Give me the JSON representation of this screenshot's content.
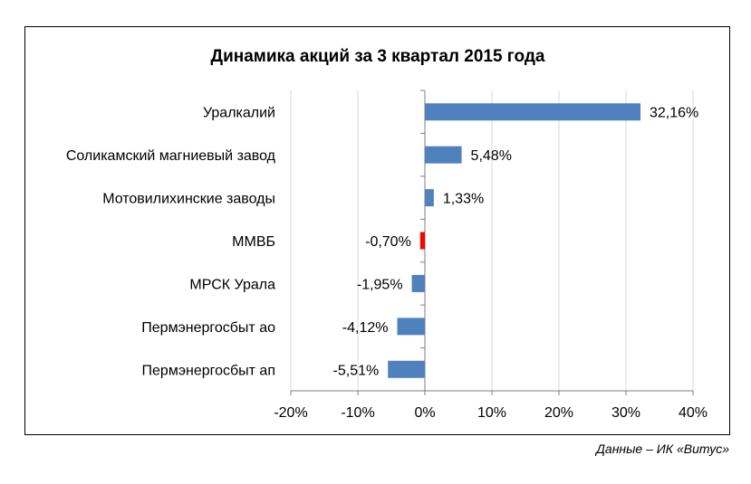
{
  "chart_data": {
    "type": "bar",
    "orientation": "horizontal",
    "title": "Динамика акций за 3 квартал 2015 года",
    "categories": [
      "Уралкалий",
      "Соликамский магниевый завод",
      "Мотовилихинские заводы",
      "ММВБ",
      "МРСК Урала",
      "Пермэнергосбыт ао",
      "Пермэнергосбыт ап"
    ],
    "values": [
      32.16,
      5.48,
      1.33,
      -0.7,
      -1.95,
      -4.12,
      -5.51
    ],
    "value_labels": [
      "32,16%",
      "5,48%",
      "1,33%",
      "-0,70%",
      "-1,95%",
      "-4,12%",
      "-5,51%"
    ],
    "highlight_category": "ММВБ",
    "xlim": [
      -20,
      40
    ],
    "xticks": [
      -20,
      -10,
      0,
      10,
      20,
      30,
      40
    ],
    "xtick_labels": [
      "-20%",
      "-10%",
      "0%",
      "10%",
      "20%",
      "30%",
      "40%"
    ],
    "xlabel": "",
    "ylabel": "",
    "grid": "vertical",
    "colors": {
      "bar": "#4f81bd",
      "highlight": "#ff0000",
      "grid": "#d9d9d9",
      "axis": "#7f7f7f"
    }
  },
  "source_note": "Данные – ИК «Витус»"
}
